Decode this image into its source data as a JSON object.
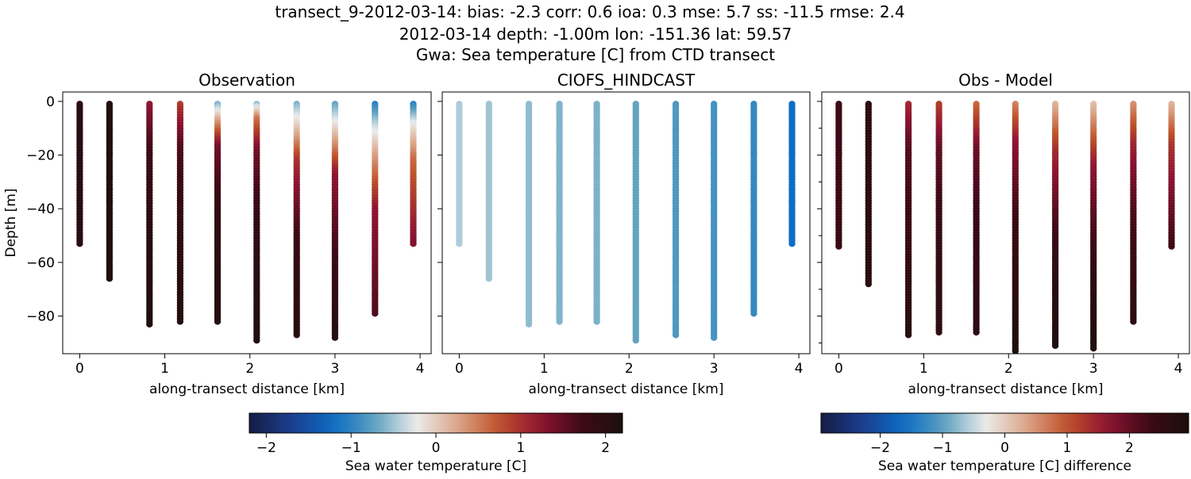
{
  "figure": {
    "title_lines": [
      "transect_9-2012-03-14: bias: -2.3  corr: 0.6  ioa: 0.3  mse: 5.7  ss: -11.5  rmse: 2.4",
      "2012-03-14 depth: -1.00m lon: -151.36 lat: 59.57",
      "Gwa: Sea temperature [C] from CTD transect"
    ]
  },
  "chart_data": [
    {
      "type": "scatter",
      "title": "Observation",
      "xlabel": "along-transect distance [km]",
      "ylabel": "Depth [m]",
      "xlim": [
        -0.2,
        4.13
      ],
      "ylim": [
        -94,
        3.5
      ],
      "xticks": [
        0,
        1,
        2,
        3,
        4
      ],
      "yticks": [
        0,
        -20,
        -40,
        -60,
        -80
      ],
      "ytick_labels": [
        "0",
        "−20",
        "−40",
        "−60",
        "−80"
      ],
      "colorbar": "temp",
      "profiles": [
        {
          "x": 0.0,
          "max_depth": -53,
          "color_stops": [
            [
              0,
              2.0
            ],
            [
              1,
              2.0
            ]
          ]
        },
        {
          "x": 0.35,
          "max_depth": -66,
          "color_stops": [
            [
              0,
              2.1
            ],
            [
              1,
              2.15
            ]
          ]
        },
        {
          "x": 0.82,
          "max_depth": -83,
          "color_stops": [
            [
              0,
              1.2
            ],
            [
              0.2,
              1.7
            ],
            [
              0.6,
              2.0
            ],
            [
              1,
              2.15
            ]
          ]
        },
        {
          "x": 1.18,
          "max_depth": -82,
          "color_stops": [
            [
              0,
              0.9
            ],
            [
              0.2,
              1.6
            ],
            [
              0.5,
              1.9
            ],
            [
              1,
              2.1
            ]
          ]
        },
        {
          "x": 1.62,
          "max_depth": -82,
          "color_stops": [
            [
              0,
              -0.6
            ],
            [
              0.08,
              0.3
            ],
            [
              0.2,
              1.4
            ],
            [
              0.5,
              1.9
            ],
            [
              1,
              2.1
            ]
          ]
        },
        {
          "x": 2.08,
          "max_depth": -89,
          "color_stops": [
            [
              0,
              -0.5
            ],
            [
              0.06,
              0.5
            ],
            [
              0.2,
              1.4
            ],
            [
              0.5,
              1.9
            ],
            [
              1,
              2.15
            ]
          ]
        },
        {
          "x": 2.55,
          "max_depth": -87,
          "color_stops": [
            [
              0,
              -0.6
            ],
            [
              0.1,
              0.0
            ],
            [
              0.25,
              1.0
            ],
            [
              0.6,
              1.8
            ],
            [
              1,
              2.05
            ]
          ]
        },
        {
          "x": 3.0,
          "max_depth": -88,
          "color_stops": [
            [
              0,
              -0.7
            ],
            [
              0.1,
              -0.1
            ],
            [
              0.3,
              1.2
            ],
            [
              0.7,
              1.8
            ],
            [
              1,
              2.05
            ]
          ]
        },
        {
          "x": 3.47,
          "max_depth": -79,
          "color_stops": [
            [
              0,
              -1.0
            ],
            [
              0.1,
              -0.4
            ],
            [
              0.25,
              0.3
            ],
            [
              0.5,
              1.2
            ],
            [
              1,
              1.6
            ]
          ]
        },
        {
          "x": 3.92,
          "max_depth": -53,
          "color_stops": [
            [
              0,
              -1.0
            ],
            [
              0.15,
              -0.2
            ],
            [
              0.4,
              0.6
            ],
            [
              1,
              1.3
            ]
          ]
        }
      ]
    },
    {
      "type": "scatter",
      "title": "CIOFS_HINDCAST",
      "xlabel": "along-transect distance [km]",
      "ylabel": "",
      "xlim": [
        -0.2,
        4.13
      ],
      "ylim": [
        -94,
        3.5
      ],
      "xticks": [
        0,
        1,
        2,
        3,
        4
      ],
      "yticks": [
        0,
        -20,
        -40,
        -60,
        -80
      ],
      "colorbar": "temp",
      "profiles": [
        {
          "x": 0.0,
          "max_depth": -53,
          "color_stops": [
            [
              0,
              -0.45
            ],
            [
              1,
              -0.45
            ]
          ]
        },
        {
          "x": 0.35,
          "max_depth": -66,
          "color_stops": [
            [
              0,
              -0.5
            ],
            [
              1,
              -0.5
            ]
          ]
        },
        {
          "x": 0.82,
          "max_depth": -83,
          "color_stops": [
            [
              0,
              -0.55
            ],
            [
              1,
              -0.55
            ]
          ]
        },
        {
          "x": 1.18,
          "max_depth": -82,
          "color_stops": [
            [
              0,
              -0.6
            ],
            [
              1,
              -0.6
            ]
          ]
        },
        {
          "x": 1.62,
          "max_depth": -82,
          "color_stops": [
            [
              0,
              -0.62
            ],
            [
              1,
              -0.62
            ]
          ]
        },
        {
          "x": 2.08,
          "max_depth": -89,
          "color_stops": [
            [
              0,
              -0.7
            ],
            [
              1,
              -0.7
            ]
          ]
        },
        {
          "x": 2.55,
          "max_depth": -87,
          "color_stops": [
            [
              0,
              -0.8
            ],
            [
              1,
              -0.8
            ]
          ]
        },
        {
          "x": 3.0,
          "max_depth": -88,
          "color_stops": [
            [
              0,
              -0.85
            ],
            [
              1,
              -0.85
            ]
          ]
        },
        {
          "x": 3.47,
          "max_depth": -79,
          "color_stops": [
            [
              0,
              -0.95
            ],
            [
              1,
              -0.95
            ]
          ]
        },
        {
          "x": 3.92,
          "max_depth": -53,
          "color_stops": [
            [
              0,
              -1.2
            ],
            [
              1,
              -1.2
            ]
          ]
        }
      ]
    },
    {
      "type": "scatter",
      "title": "Obs - Model",
      "xlabel": "along-transect distance [km]",
      "ylabel": "",
      "xlim": [
        -0.2,
        4.13
      ],
      "ylim": [
        -94,
        3.5
      ],
      "xticks": [
        0,
        1,
        2,
        3,
        4
      ],
      "yticks": [
        0,
        -20,
        -40,
        -60,
        -80
      ],
      "colorbar": "diff",
      "profiles": [
        {
          "x": 0.0,
          "max_depth": -54,
          "color_stops": [
            [
              0,
              2.3
            ],
            [
              1,
              2.4
            ]
          ]
        },
        {
          "x": 0.35,
          "max_depth": -68,
          "color_stops": [
            [
              0,
              2.6
            ],
            [
              1,
              2.7
            ]
          ]
        },
        {
          "x": 0.82,
          "max_depth": -87,
          "color_stops": [
            [
              0,
              1.4
            ],
            [
              0.2,
              2.1
            ],
            [
              0.6,
              2.4
            ],
            [
              1,
              2.7
            ]
          ]
        },
        {
          "x": 1.18,
          "max_depth": -86,
          "color_stops": [
            [
              0,
              1.2
            ],
            [
              0.2,
              2.0
            ],
            [
              0.5,
              2.4
            ],
            [
              1,
              2.6
            ]
          ]
        },
        {
          "x": 1.62,
          "max_depth": -86,
          "color_stops": [
            [
              0,
              0.8
            ],
            [
              0.2,
              1.9
            ],
            [
              0.5,
              2.4
            ],
            [
              1,
              2.6
            ]
          ]
        },
        {
          "x": 2.08,
          "max_depth": -93,
          "color_stops": [
            [
              0,
              0.6
            ],
            [
              0.15,
              1.6
            ],
            [
              0.5,
              2.4
            ],
            [
              1,
              2.9
            ]
          ]
        },
        {
          "x": 2.55,
          "max_depth": -91,
          "color_stops": [
            [
              0,
              0.2
            ],
            [
              0.2,
              1.4
            ],
            [
              0.6,
              2.5
            ],
            [
              1,
              2.9
            ]
          ]
        },
        {
          "x": 3.0,
          "max_depth": -92,
          "color_stops": [
            [
              0,
              0.1
            ],
            [
              0.25,
              1.6
            ],
            [
              0.7,
              2.6
            ],
            [
              1,
              2.9
            ]
          ]
        },
        {
          "x": 3.47,
          "max_depth": -82,
          "color_stops": [
            [
              0,
              0.5
            ],
            [
              0.2,
              1.5
            ],
            [
              0.5,
              2.2
            ],
            [
              1,
              2.6
            ]
          ]
        },
        {
          "x": 3.92,
          "max_depth": -54,
          "color_stops": [
            [
              0,
              0.2
            ],
            [
              0.3,
              1.3
            ],
            [
              1,
              2.3
            ]
          ]
        }
      ]
    }
  ],
  "colorbars": {
    "temp": {
      "label": "Sea water temperature [C]",
      "range": [
        -2.2,
        2.2
      ],
      "ticks": [
        -2,
        -1,
        0,
        1,
        2
      ],
      "tick_labels": [
        "−2",
        "−1",
        "0",
        "1",
        "2"
      ]
    },
    "diff": {
      "label": "Sea water temperature [C] difference",
      "range": [
        -2.95,
        2.95
      ],
      "ticks": [
        -2,
        -1,
        0,
        1,
        2
      ],
      "tick_labels": [
        "−2",
        "−1",
        "0",
        "1",
        "2"
      ]
    }
  },
  "colormap_stops": [
    "#151d44",
    "#1c3d8c",
    "#0a6bc3",
    "#5a9fbe",
    "#eceded",
    "#dca88c",
    "#c0532a",
    "#8e1432",
    "#3d0a16",
    "#1c0f0d"
  ]
}
